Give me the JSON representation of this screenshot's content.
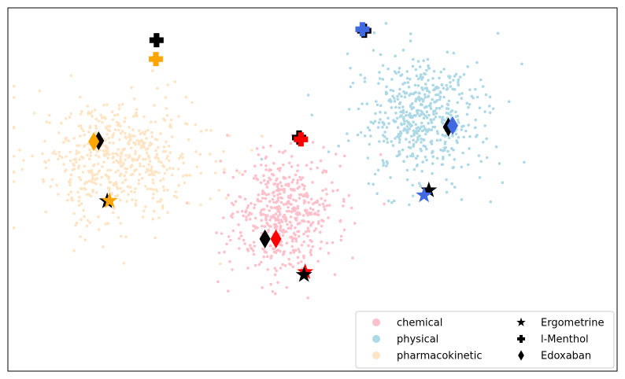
{
  "chart_data": {
    "type": "scatter",
    "title": "",
    "xlabel": "",
    "ylabel": "",
    "xlim": [
      0,
      100
    ],
    "ylim": [
      0,
      100
    ],
    "axis_ticks_visible": false,
    "grid": false,
    "legend_position": "lower-right",
    "legend_columns": 2,
    "clusters": [
      {
        "name": "chemical",
        "color": "#ffc0cb",
        "center": [
          45.5,
          43
        ],
        "spread": [
          7.5,
          15
        ],
        "count": 520
      },
      {
        "name": "physical",
        "color": "#add8e6",
        "center": [
          68,
          70
        ],
        "spread": [
          8.5,
          14
        ],
        "count": 540
      },
      {
        "name": "pharmacokinetic",
        "color": "#ffe4c4",
        "center": [
          17.5,
          58
        ],
        "spread": [
          11.5,
          15
        ],
        "count": 560
      }
    ],
    "highlights": [
      {
        "drug": "Ergometrine",
        "category": "chemical",
        "color": "#ff0000",
        "point": [
          48.8,
          27.3
        ]
      },
      {
        "drug": "Ergometrine",
        "category": "chemical",
        "color": "#000000",
        "point": [
          48.6,
          26.5
        ]
      },
      {
        "drug": "Ergometrine",
        "category": "physical",
        "color": "#000000",
        "point": [
          69.1,
          49.8
        ]
      },
      {
        "drug": "Ergometrine",
        "category": "physical",
        "color": "#4169e1",
        "point": [
          68.3,
          48.4
        ]
      },
      {
        "drug": "Ergometrine",
        "category": "pharmacokinetic",
        "color": "#000000",
        "point": [
          16.3,
          46.8
        ]
      },
      {
        "drug": "Ergometrine",
        "category": "pharmacokinetic",
        "color": "#ffa500",
        "point": [
          16.7,
          46.9
        ]
      },
      {
        "drug": "l-Menthol",
        "category": "chemical",
        "color": "#000000",
        "point": [
          47.8,
          64.3
        ]
      },
      {
        "drug": "l-Menthol",
        "category": "chemical",
        "color": "#ff0000",
        "point": [
          48.1,
          63.8
        ]
      },
      {
        "drug": "l-Menthol",
        "category": "physical",
        "color": "#000000",
        "point": [
          58.5,
          93.7
        ]
      },
      {
        "drug": "l-Menthol",
        "category": "physical",
        "color": "#4169e1",
        "point": [
          58.2,
          94.1
        ]
      },
      {
        "drug": "l-Menthol",
        "category": "pharmacokinetic",
        "color": "#000000",
        "point": [
          24.4,
          91.1
        ]
      },
      {
        "drug": "l-Menthol",
        "category": "pharmacokinetic",
        "color": "#ffa500",
        "point": [
          24.3,
          85.9
        ]
      },
      {
        "drug": "Edoxaban",
        "category": "chemical",
        "color": "#000000",
        "point": [
          42.2,
          36.4
        ]
      },
      {
        "drug": "Edoxaban",
        "category": "chemical",
        "color": "#ff0000",
        "point": [
          44.0,
          36.4
        ]
      },
      {
        "drug": "Edoxaban",
        "category": "physical",
        "color": "#000000",
        "point": [
          72.3,
          67.2
        ]
      },
      {
        "drug": "Edoxaban",
        "category": "physical",
        "color": "#4169e1",
        "point": [
          73.0,
          67.6
        ]
      },
      {
        "drug": "Edoxaban",
        "category": "pharmacokinetic",
        "color": "#000000",
        "point": [
          14.9,
          63.4
        ]
      },
      {
        "drug": "Edoxaban",
        "category": "pharmacokinetic",
        "color": "#ffa500",
        "point": [
          14.1,
          63.2
        ]
      }
    ],
    "legend": [
      {
        "label": "chemical",
        "marker": "circle",
        "color": "#ffc0cb"
      },
      {
        "label": "physical",
        "marker": "circle",
        "color": "#add8e6"
      },
      {
        "label": "pharmacokinetic",
        "marker": "circle",
        "color": "#ffe4c4"
      },
      {
        "label": "Ergometrine",
        "marker": "star",
        "color": "#000000"
      },
      {
        "label": "l-Menthol",
        "marker": "plus",
        "color": "#000000"
      },
      {
        "label": "Edoxaban",
        "marker": "diamond",
        "color": "#000000"
      }
    ]
  }
}
